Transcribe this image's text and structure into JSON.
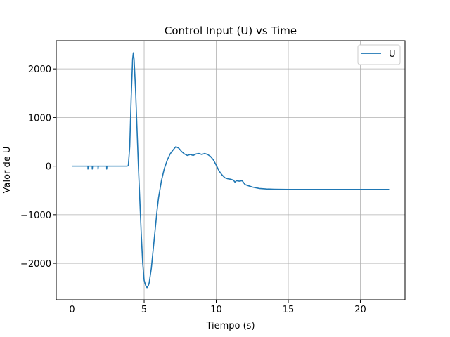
{
  "chart_data": {
    "type": "line",
    "title": "Control Input (U) vs Time",
    "xlabel": "Tiempo (s)",
    "ylabel": "Valor de U",
    "xlim": [
      -1.1,
      23.1
    ],
    "ylim": [
      -2750,
      2580
    ],
    "xticks": [
      0,
      5,
      10,
      15,
      20
    ],
    "yticks": [
      -2000,
      -1000,
      0,
      1000,
      2000
    ],
    "xtick_labels": [
      "0",
      "5",
      "10",
      "15",
      "20"
    ],
    "ytick_labels": [
      "−2000",
      "−1000",
      "0",
      "1000",
      "2000"
    ],
    "grid": true,
    "legend": "upper right",
    "series": [
      {
        "name": "U",
        "color": "#1f77b4",
        "x": [
          0,
          1.1,
          1.1,
          1.12,
          1.4,
          1.4,
          1.42,
          1.8,
          1.8,
          1.82,
          2.4,
          2.4,
          2.42,
          3.8,
          3.9,
          4.0,
          4.1,
          4.2,
          4.25,
          4.3,
          4.4,
          4.5,
          4.6,
          4.7,
          4.8,
          4.9,
          5.0,
          5.1,
          5.2,
          5.3,
          5.35,
          5.4,
          5.5,
          5.6,
          5.7,
          5.8,
          5.9,
          6.0,
          6.2,
          6.4,
          6.6,
          6.8,
          7.0,
          7.2,
          7.4,
          7.6,
          7.8,
          8.0,
          8.2,
          8.4,
          8.6,
          8.8,
          9.0,
          9.2,
          9.4,
          9.6,
          9.8,
          10.0,
          10.2,
          10.4,
          10.6,
          10.8,
          11.0,
          11.2,
          11.3,
          11.4,
          11.6,
          11.8,
          12.0,
          12.2,
          12.5,
          13.0,
          13.5,
          14.0,
          15.0,
          16.0,
          18.0,
          20.0,
          22.0
        ],
        "y": [
          0,
          0,
          -60,
          0,
          0,
          -60,
          0,
          0,
          -60,
          0,
          0,
          -60,
          0,
          0,
          5,
          400,
          1400,
          2200,
          2330,
          2200,
          1600,
          800,
          0,
          -700,
          -1400,
          -2000,
          -2350,
          -2450,
          -2500,
          -2450,
          -2400,
          -2300,
          -2100,
          -1800,
          -1500,
          -1200,
          -900,
          -650,
          -300,
          -50,
          120,
          250,
          330,
          400,
          370,
          300,
          250,
          220,
          240,
          220,
          250,
          260,
          240,
          260,
          240,
          200,
          130,
          20,
          -100,
          -180,
          -240,
          -260,
          -270,
          -290,
          -330,
          -300,
          -310,
          -300,
          -380,
          -400,
          -430,
          -460,
          -470,
          -475,
          -480,
          -480,
          -480,
          -480,
          -480
        ]
      }
    ]
  }
}
